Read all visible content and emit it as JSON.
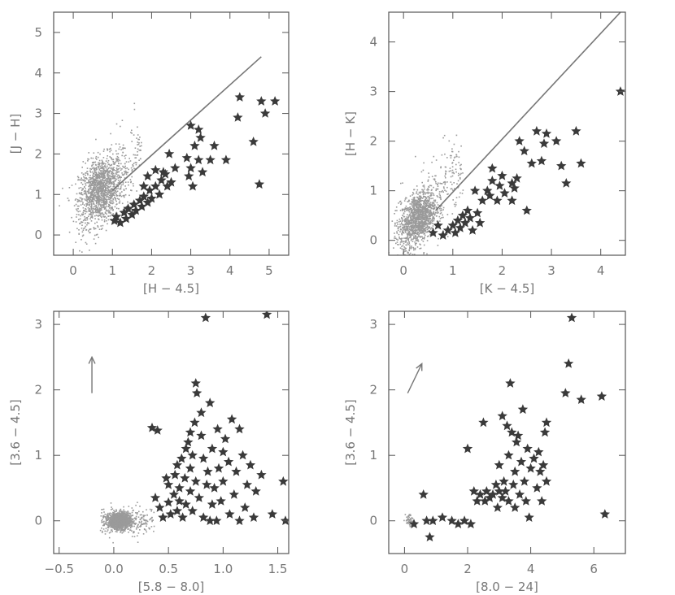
{
  "chart_data": [
    {
      "type": "scatter",
      "xlabel": "[H − 4.5]",
      "ylabel": "[J − H]",
      "xlim": [
        -0.5,
        5.5
      ],
      "ylim": [
        -0.5,
        5.5
      ],
      "xticks": [
        0,
        1,
        2,
        3,
        4,
        5
      ],
      "yticks": [
        0,
        1,
        2,
        3,
        4,
        5
      ],
      "reference_line": [
        [
          1.0,
          1.1
        ],
        [
          4.8,
          4.4
        ]
      ],
      "background_cloud": {
        "cx": 0.7,
        "cy": 1.1,
        "sx": 0.28,
        "sy": 0.4,
        "n": 1500,
        "spread_x": 1.6,
        "spread_y": 2.6,
        "tilt": 0.7
      },
      "stars": [
        [
          1.05,
          0.35
        ],
        [
          1.1,
          0.45
        ],
        [
          1.2,
          0.3
        ],
        [
          1.3,
          0.55
        ],
        [
          1.35,
          0.4
        ],
        [
          1.4,
          0.65
        ],
        [
          1.5,
          0.5
        ],
        [
          1.55,
          0.75
        ],
        [
          1.6,
          0.6
        ],
        [
          1.7,
          0.85
        ],
        [
          1.75,
          0.7
        ],
        [
          1.8,
          0.95
        ],
        [
          1.9,
          0.8
        ],
        [
          1.95,
          1.1
        ],
        [
          2.0,
          0.9
        ],
        [
          2.1,
          1.2
        ],
        [
          2.2,
          1.0
        ],
        [
          2.25,
          1.35
        ],
        [
          2.35,
          1.5
        ],
        [
          2.4,
          1.2
        ],
        [
          2.5,
          1.3
        ],
        [
          2.3,
          1.55
        ],
        [
          2.1,
          1.6
        ],
        [
          1.9,
          1.45
        ],
        [
          1.8,
          1.2
        ],
        [
          2.6,
          1.65
        ],
        [
          2.9,
          1.9
        ],
        [
          2.95,
          1.45
        ],
        [
          3.0,
          1.65
        ],
        [
          3.05,
          1.2
        ],
        [
          3.1,
          2.2
        ],
        [
          3.2,
          1.85
        ],
        [
          3.25,
          2.4
        ],
        [
          3.3,
          1.55
        ],
        [
          3.5,
          1.85
        ],
        [
          3.6,
          2.2
        ],
        [
          3.0,
          2.7
        ],
        [
          3.2,
          2.6
        ],
        [
          3.9,
          1.85
        ],
        [
          4.2,
          2.9
        ],
        [
          4.25,
          3.4
        ],
        [
          4.6,
          2.3
        ],
        [
          4.75,
          1.25
        ],
        [
          4.8,
          3.3
        ],
        [
          4.9,
          3.0
        ],
        [
          5.15,
          3.3
        ],
        [
          2.45,
          2.0
        ]
      ]
    },
    {
      "type": "scatter",
      "xlabel": "[K − 4.5]",
      "ylabel": "[H − K]",
      "xlim": [
        -0.3,
        4.5
      ],
      "ylim": [
        -0.3,
        4.6
      ],
      "xticks": [
        0,
        1,
        2,
        3,
        4
      ],
      "yticks": [
        0,
        1,
        2,
        3,
        4
      ],
      "reference_line": [
        [
          0.65,
          0.6
        ],
        [
          4.4,
          4.6
        ]
      ],
      "background_cloud": {
        "cx": 0.3,
        "cy": 0.45,
        "sx": 0.18,
        "sy": 0.25,
        "n": 1500,
        "spread_x": 1.4,
        "spread_y": 2.2,
        "tilt": 0.9
      },
      "stars": [
        [
          0.6,
          0.15
        ],
        [
          0.7,
          0.3
        ],
        [
          0.8,
          0.1
        ],
        [
          0.9,
          0.2
        ],
        [
          1.0,
          0.3
        ],
        [
          1.05,
          0.15
        ],
        [
          1.1,
          0.4
        ],
        [
          1.15,
          0.25
        ],
        [
          1.2,
          0.5
        ],
        [
          1.25,
          0.35
        ],
        [
          1.3,
          0.6
        ],
        [
          1.35,
          0.45
        ],
        [
          1.4,
          0.2
        ],
        [
          1.5,
          0.55
        ],
        [
          1.55,
          0.35
        ],
        [
          1.6,
          0.8
        ],
        [
          1.7,
          1.0
        ],
        [
          1.75,
          0.9
        ],
        [
          1.8,
          1.2
        ],
        [
          1.9,
          0.8
        ],
        [
          1.95,
          1.1
        ],
        [
          2.0,
          1.3
        ],
        [
          2.05,
          0.95
        ],
        [
          2.2,
          0.8
        ],
        [
          2.25,
          1.05
        ],
        [
          2.3,
          1.25
        ],
        [
          2.35,
          2.0
        ],
        [
          2.45,
          1.8
        ],
        [
          2.5,
          0.6
        ],
        [
          2.6,
          1.55
        ],
        [
          2.7,
          2.2
        ],
        [
          2.8,
          1.6
        ],
        [
          2.85,
          1.95
        ],
        [
          2.9,
          2.15
        ],
        [
          3.1,
          2.0
        ],
        [
          3.2,
          1.5
        ],
        [
          3.3,
          1.15
        ],
        [
          3.5,
          2.2
        ],
        [
          3.6,
          1.55
        ],
        [
          1.8,
          1.45
        ],
        [
          2.2,
          1.15
        ],
        [
          1.45,
          1.0
        ],
        [
          4.4,
          3.0
        ]
      ]
    },
    {
      "type": "scatter",
      "xlabel": "[5.8 − 8.0]",
      "ylabel": "[3.6 − 4.5]",
      "xlim": [
        -0.55,
        1.6
      ],
      "ylim": [
        -0.5,
        3.2
      ],
      "xticks": [
        -0.5,
        0.0,
        0.5,
        1.0,
        1.5
      ],
      "xticklabels": [
        "−0.5",
        "0.0",
        "0.5",
        "1.0",
        "1.5"
      ],
      "yticks": [
        0,
        1,
        2,
        3
      ],
      "reddening_arrow": [
        [
          -0.2,
          1.95
        ],
        [
          -0.2,
          2.5
        ]
      ],
      "background_cloud": {
        "cx": 0.05,
        "cy": 0.0,
        "sx": 0.05,
        "sy": 0.06,
        "n": 1500,
        "spread_x": 0.5,
        "spread_y": 0.55,
        "tilt": 0.0
      },
      "stars": [
        [
          0.35,
          1.42
        ],
        [
          0.4,
          1.38
        ],
        [
          0.38,
          0.35
        ],
        [
          0.42,
          0.2
        ],
        [
          0.45,
          0.05
        ],
        [
          0.5,
          0.55
        ],
        [
          0.5,
          0.28
        ],
        [
          0.52,
          0.1
        ],
        [
          0.55,
          0.4
        ],
        [
          0.56,
          0.7
        ],
        [
          0.58,
          0.15
        ],
        [
          0.6,
          0.3
        ],
        [
          0.6,
          0.5
        ],
        [
          0.62,
          0.95
        ],
        [
          0.63,
          0.05
        ],
        [
          0.65,
          0.65
        ],
        [
          0.66,
          0.25
        ],
        [
          0.68,
          1.2
        ],
        [
          0.7,
          0.45
        ],
        [
          0.7,
          0.8
        ],
        [
          0.72,
          1.0
        ],
        [
          0.72,
          0.15
        ],
        [
          0.74,
          1.5
        ],
        [
          0.75,
          2.1
        ],
        [
          0.75,
          0.6
        ],
        [
          0.76,
          1.95
        ],
        [
          0.78,
          0.35
        ],
        [
          0.8,
          1.65
        ],
        [
          0.8,
          1.3
        ],
        [
          0.82,
          0.05
        ],
        [
          0.82,
          0.95
        ],
        [
          0.84,
          3.1
        ],
        [
          0.85,
          0.55
        ],
        [
          0.86,
          0.75
        ],
        [
          0.88,
          1.8
        ],
        [
          0.9,
          0.25
        ],
        [
          0.9,
          1.1
        ],
        [
          0.92,
          0.5
        ],
        [
          0.94,
          0.0
        ],
        [
          0.95,
          1.4
        ],
        [
          0.96,
          0.8
        ],
        [
          0.98,
          0.3
        ],
        [
          1.0,
          1.05
        ],
        [
          1.0,
          0.6
        ],
        [
          1.02,
          1.25
        ],
        [
          1.05,
          0.9
        ],
        [
          1.06,
          0.1
        ],
        [
          1.08,
          1.55
        ],
        [
          1.1,
          0.4
        ],
        [
          1.12,
          0.75
        ],
        [
          1.15,
          1.4
        ],
        [
          1.18,
          1.0
        ],
        [
          1.2,
          0.2
        ],
        [
          1.22,
          0.55
        ],
        [
          1.25,
          0.85
        ],
        [
          1.28,
          0.05
        ],
        [
          1.3,
          0.45
        ],
        [
          1.35,
          0.7
        ],
        [
          1.4,
          3.15
        ],
        [
          1.45,
          0.1
        ],
        [
          1.55,
          0.6
        ],
        [
          1.57,
          0.0
        ],
        [
          0.48,
          0.65
        ],
        [
          0.58,
          0.85
        ],
        [
          0.66,
          1.1
        ],
        [
          0.7,
          1.35
        ],
        [
          0.88,
          0.0
        ],
        [
          1.15,
          0.0
        ]
      ]
    },
    {
      "type": "scatter",
      "xlabel": "[8.0 − 24]",
      "ylabel": "[3.6 − 4.5]",
      "xlim": [
        -0.5,
        7.0
      ],
      "ylim": [
        -0.5,
        3.2
      ],
      "xticks": [
        0,
        2,
        4,
        6
      ],
      "yticks": [
        0,
        1,
        2,
        3
      ],
      "reddening_arrow": [
        [
          0.1,
          1.95
        ],
        [
          0.55,
          2.4
        ]
      ],
      "background_cloud": {
        "cx": 0.15,
        "cy": 0.0,
        "sx": 0.06,
        "sy": 0.06,
        "n": 50,
        "spread_x": 0.2,
        "spread_y": 0.2,
        "tilt": 0.0
      },
      "stars": [
        [
          0.3,
          -0.05
        ],
        [
          0.6,
          0.4
        ],
        [
          0.7,
          0.0
        ],
        [
          0.8,
          -0.25
        ],
        [
          0.9,
          0.0
        ],
        [
          1.2,
          0.05
        ],
        [
          1.5,
          0.0
        ],
        [
          1.7,
          -0.05
        ],
        [
          1.9,
          0.0
        ],
        [
          2.0,
          1.1
        ],
        [
          2.1,
          -0.05
        ],
        [
          2.2,
          0.45
        ],
        [
          2.3,
          0.3
        ],
        [
          2.4,
          0.4
        ],
        [
          2.5,
          1.5
        ],
        [
          2.55,
          0.3
        ],
        [
          2.6,
          0.45
        ],
        [
          2.7,
          0.35
        ],
        [
          2.8,
          0.4
        ],
        [
          2.9,
          0.55
        ],
        [
          2.95,
          0.2
        ],
        [
          3.0,
          0.45
        ],
        [
          3.0,
          0.85
        ],
        [
          3.1,
          1.6
        ],
        [
          3.1,
          0.35
        ],
        [
          3.15,
          0.6
        ],
        [
          3.2,
          0.45
        ],
        [
          3.3,
          1.0
        ],
        [
          3.3,
          0.3
        ],
        [
          3.35,
          2.1
        ],
        [
          3.4,
          1.35
        ],
        [
          3.45,
          0.55
        ],
        [
          3.5,
          0.75
        ],
        [
          3.55,
          1.2
        ],
        [
          3.6,
          1.3
        ],
        [
          3.65,
          0.4
        ],
        [
          3.7,
          0.9
        ],
        [
          3.75,
          1.7
        ],
        [
          3.8,
          0.6
        ],
        [
          3.85,
          0.3
        ],
        [
          3.9,
          1.1
        ],
        [
          3.95,
          0.05
        ],
        [
          4.0,
          0.8
        ],
        [
          4.1,
          0.95
        ],
        [
          4.2,
          0.5
        ],
        [
          4.25,
          1.05
        ],
        [
          4.3,
          0.75
        ],
        [
          4.35,
          0.3
        ],
        [
          4.4,
          0.85
        ],
        [
          4.45,
          1.35
        ],
        [
          4.5,
          1.5
        ],
        [
          4.5,
          0.6
        ],
        [
          3.25,
          1.45
        ],
        [
          3.5,
          0.2
        ],
        [
          5.1,
          1.95
        ],
        [
          5.2,
          2.4
        ],
        [
          5.3,
          3.1
        ],
        [
          5.6,
          1.85
        ],
        [
          6.25,
          1.9
        ],
        [
          6.35,
          0.1
        ]
      ]
    }
  ]
}
